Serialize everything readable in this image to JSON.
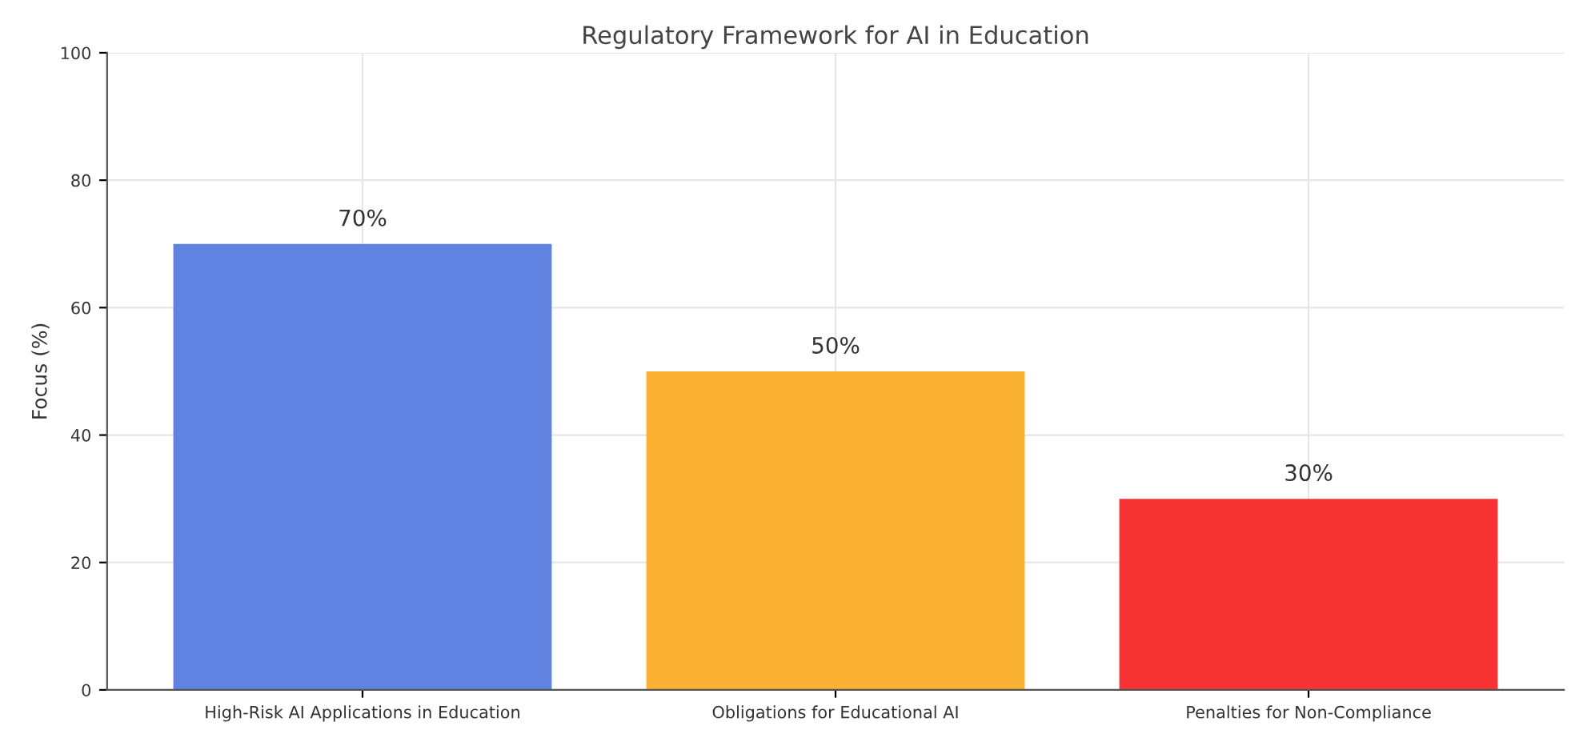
{
  "chart_data": {
    "type": "bar",
    "title": "Regulatory Framework for AI in Education",
    "ylabel": "Focus (%)",
    "categories": [
      "High-Risk AI Applications in Education",
      "Obligations for Educational AI",
      "Penalties for Non-Compliance"
    ],
    "values": [
      70,
      50,
      30
    ],
    "value_labels": [
      "70%",
      "50%",
      "30%"
    ],
    "colors": [
      "#6082e0",
      "#fbb233",
      "#f83333"
    ],
    "ylim": [
      0,
      100
    ],
    "yticks": [
      0,
      20,
      40,
      60,
      80,
      100
    ],
    "grid": true
  }
}
